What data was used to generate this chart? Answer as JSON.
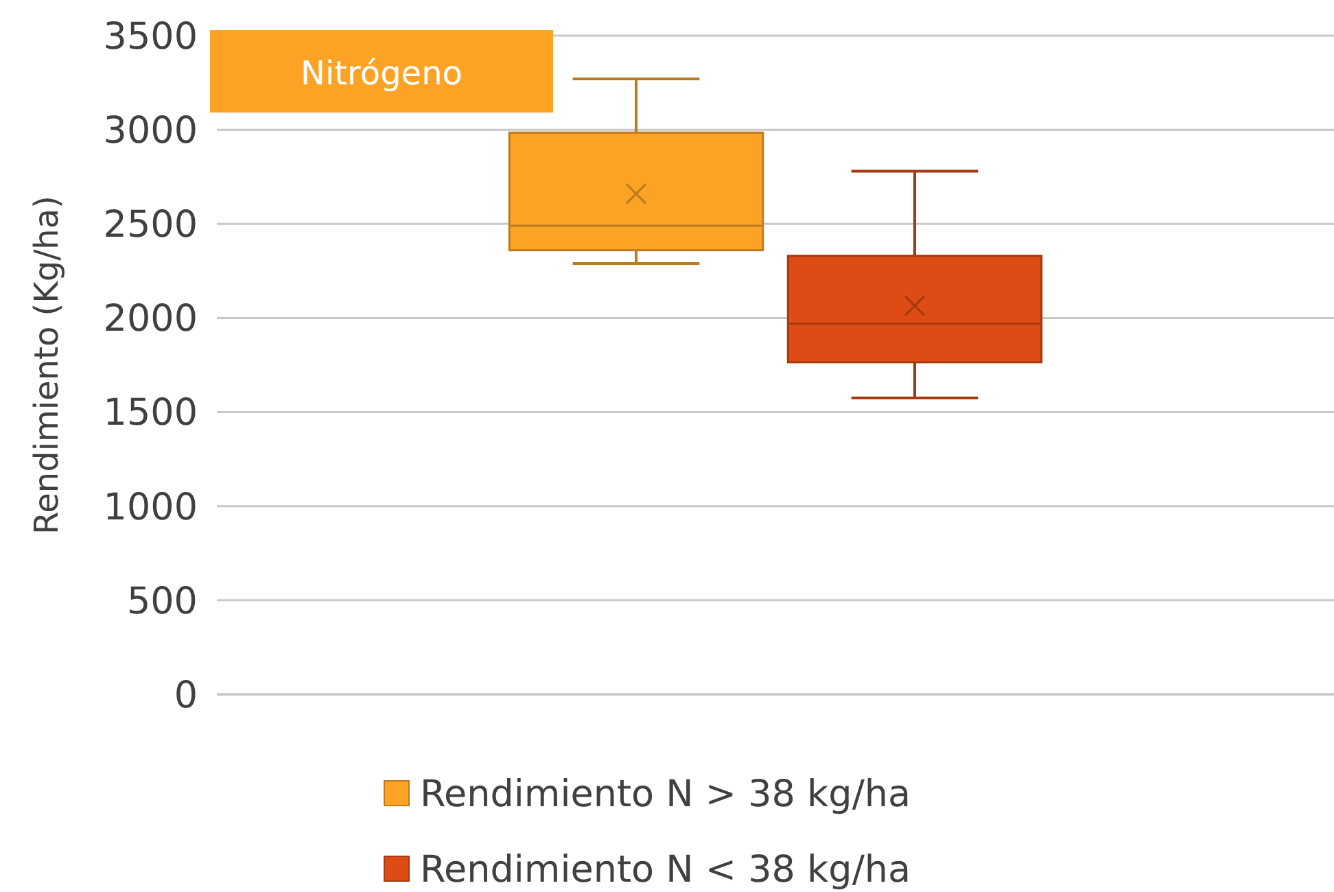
{
  "chart_data": {
    "type": "box",
    "title": "Nitrógeno",
    "ylabel": "Rendimiento (Kg/ha)",
    "categories": [
      null
    ],
    "ylim": [
      0,
      3500
    ],
    "yticks": [
      0,
      500,
      1000,
      1500,
      2000,
      2500,
      3000,
      3500
    ],
    "grid": "y",
    "legend": "bottom",
    "tick_labels": "y",
    "marker": "cross",
    "series": [
      {
        "name": "Rendimiento N > 38 kg/ha",
        "color": "#fca326",
        "boxes": [
          {
            "low": 2290,
            "q1": 2360,
            "median": 2490,
            "q3": 2985,
            "high": 3270,
            "mean": 2660
          }
        ]
      },
      {
        "name": "Rendimiento N < 38 kg/ha",
        "color": "#dc4c14",
        "boxes": [
          {
            "low": 1575,
            "q1": 1765,
            "median": 1970,
            "q3": 2330,
            "high": 2780,
            "mean": 2065
          }
        ]
      }
    ]
  }
}
